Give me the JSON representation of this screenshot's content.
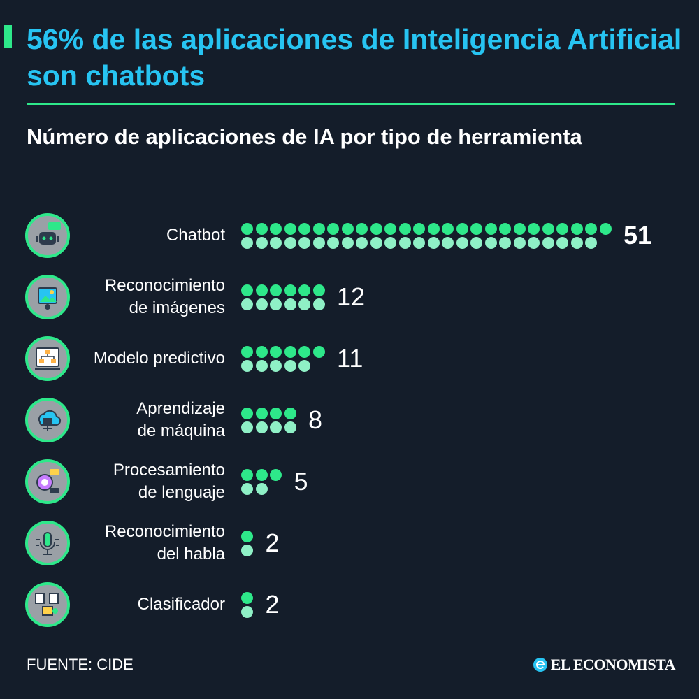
{
  "header": {
    "title": "56% de las aplicaciones de Inteligencia Artificial son chatbots",
    "subtitle": "Número de aplicaciones de IA por tipo de herramienta"
  },
  "colors": {
    "background": "#141d2a",
    "title": "#27c4f2",
    "accent": "#2ee88a",
    "dot_top": "#2ee88a",
    "dot_bottom": "#8ff0c6",
    "icon_bg": "#9aa0a6"
  },
  "chart_data": {
    "type": "bar",
    "categories": [
      "Chatbot",
      "Reconocimiento de imágenes",
      "Modelo predictivo",
      "Aprendizaje de máquina",
      "Procesamiento de lenguaje",
      "Reconocimiento del habla",
      "Clasificador"
    ],
    "display_labels": [
      [
        "Chatbot"
      ],
      [
        "Reconocimiento",
        "de imágenes"
      ],
      [
        "Modelo predictivo"
      ],
      [
        "Aprendizaje",
        "de máquina"
      ],
      [
        "Procesamiento",
        "de lenguaje"
      ],
      [
        "Reconocimiento",
        "del habla"
      ],
      [
        "Clasificador"
      ]
    ],
    "values": [
      51,
      12,
      11,
      8,
      5,
      2,
      2
    ],
    "value_labels": [
      "51",
      "12",
      "11",
      "8",
      "5",
      "2",
      "2"
    ],
    "icons": [
      "chatbot-icon",
      "image-recognition-icon",
      "predictive-model-icon",
      "machine-learning-icon",
      "nlp-icon",
      "speech-recognition-icon",
      "classifier-icon"
    ]
  },
  "footer": {
    "source": "FUENTE: CIDE",
    "brand": "EL ECONOMISTA"
  }
}
